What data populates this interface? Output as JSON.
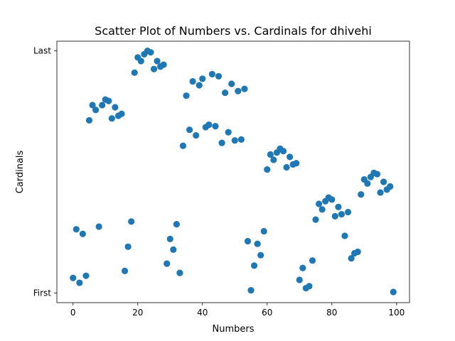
{
  "chart_data": {
    "type": "scatter",
    "title": "Scatter Plot of Numbers vs. Cardinals for dhivehi",
    "xlabel": "Numbers",
    "ylabel": "Cardinals",
    "xlim": [
      -5,
      104
    ],
    "ylim": [
      -0.04,
      1.04
    ],
    "x_ticks": [
      0,
      20,
      40,
      60,
      80,
      100
    ],
    "y_ticks": [
      {
        "value": 0,
        "label": "First"
      },
      {
        "value": 1,
        "label": "Last"
      }
    ],
    "marker_color": "#1f77b4",
    "grid": false,
    "legend": "none",
    "x": [
      0,
      1,
      2,
      3,
      4,
      5,
      6,
      7,
      8,
      9,
      10,
      11,
      12,
      13,
      14,
      15,
      16,
      17,
      18,
      19,
      20,
      21,
      22,
      23,
      24,
      25,
      26,
      27,
      28,
      29,
      30,
      31,
      32,
      33,
      34,
      35,
      36,
      37,
      38,
      39,
      40,
      41,
      42,
      43,
      44,
      45,
      46,
      47,
      48,
      49,
      50,
      51,
      52,
      53,
      54,
      55,
      56,
      57,
      58,
      59,
      60,
      61,
      62,
      63,
      64,
      65,
      66,
      67,
      68,
      69,
      70,
      71,
      72,
      73,
      74,
      75,
      76,
      77,
      78,
      79,
      80,
      81,
      82,
      83,
      84,
      85,
      86,
      87,
      88,
      89,
      90,
      91,
      92,
      93,
      94,
      95,
      96,
      97,
      98,
      99
    ],
    "y": [
      0.062,
      0.263,
      0.042,
      0.244,
      0.071,
      0.713,
      0.776,
      0.756,
      0.274,
      0.776,
      0.799,
      0.793,
      0.721,
      0.767,
      0.732,
      0.74,
      0.091,
      0.191,
      0.295,
      0.91,
      0.973,
      0.958,
      0.986,
      1.0,
      0.994,
      0.925,
      0.958,
      0.935,
      0.943,
      0.121,
      0.223,
      0.179,
      0.284,
      0.083,
      0.608,
      0.815,
      0.674,
      0.874,
      0.651,
      0.858,
      0.885,
      0.685,
      0.695,
      0.904,
      0.689,
      0.895,
      0.62,
      0.827,
      0.664,
      0.864,
      0.63,
      0.834,
      0.634,
      0.843,
      0.214,
      0.011,
      0.113,
      0.203,
      0.156,
      0.255,
      0.51,
      0.572,
      0.55,
      0.58,
      0.596,
      0.586,
      0.519,
      0.562,
      0.531,
      0.536,
      0.054,
      0.103,
      0.02,
      0.028,
      0.134,
      0.303,
      0.368,
      0.345,
      0.379,
      0.394,
      0.386,
      0.317,
      0.355,
      0.325,
      0.236,
      0.334,
      0.143,
      0.164,
      0.17,
      0.407,
      0.469,
      0.452,
      0.479,
      0.496,
      0.491,
      0.415,
      0.459,
      0.427,
      0.44,
      0.004
    ]
  }
}
